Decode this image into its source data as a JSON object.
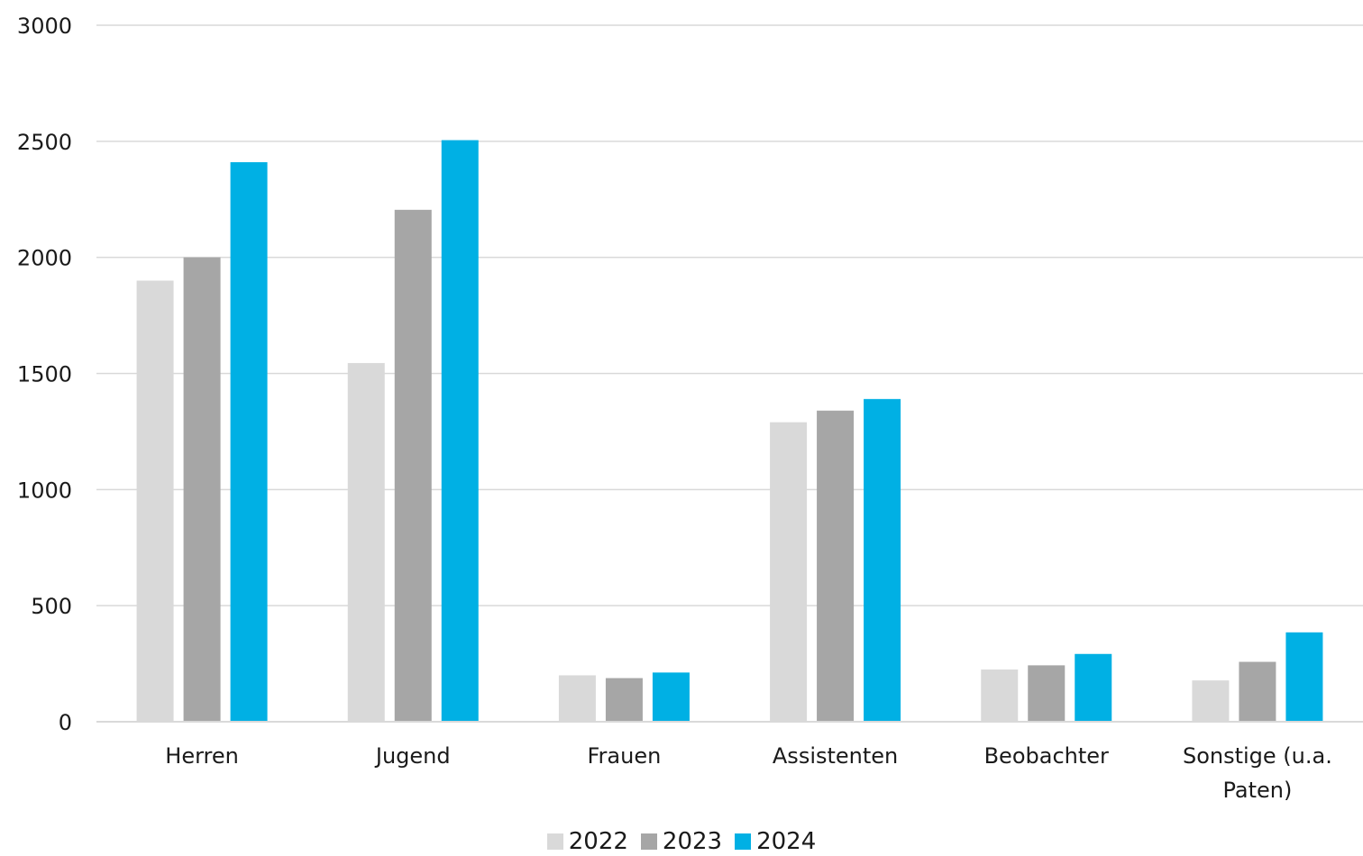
{
  "chart_data": {
    "type": "bar",
    "categories": [
      "Herren",
      "Jugend",
      "Frauen",
      "Assistenten",
      "Beobachter",
      "Sonstige (u.a. Paten)"
    ],
    "category_lines": [
      [
        "Herren"
      ],
      [
        "Jugend"
      ],
      [
        "Frauen"
      ],
      [
        "Assistenten"
      ],
      [
        "Beobachter"
      ],
      [
        "Sonstige (u.a.",
        "Paten)"
      ]
    ],
    "series": [
      {
        "name": "2022",
        "color": "#d9d9d9",
        "values": [
          1900,
          1545,
          200,
          1290,
          225,
          178
        ]
      },
      {
        "name": "2023",
        "color": "#a6a6a6",
        "values": [
          2000,
          2205,
          188,
          1340,
          243,
          258
        ]
      },
      {
        "name": "2024",
        "color": "#00b0e4",
        "values": [
          2410,
          2505,
          212,
          1390,
          292,
          385
        ]
      }
    ],
    "y_ticks": [
      "0",
      "500",
      "1000",
      "1500",
      "2000",
      "2500",
      "3000"
    ],
    "ylim": [
      0,
      3000
    ],
    "grid": true,
    "legend_position": "bottom",
    "title": "",
    "xlabel": "",
    "ylabel": ""
  }
}
